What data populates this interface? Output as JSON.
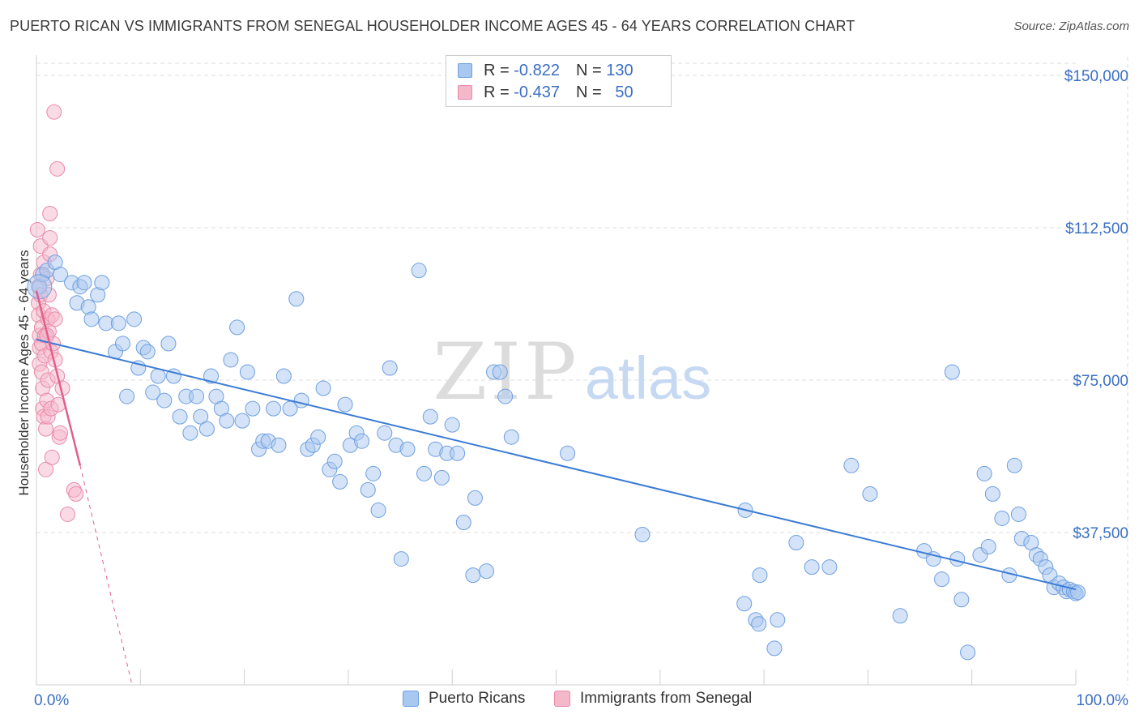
{
  "header": {
    "title": "PUERTO RICAN VS IMMIGRANTS FROM SENEGAL HOUSEHOLDER INCOME AGES 45 - 64 YEARS CORRELATION CHART",
    "source": "Source: ZipAtlas.com"
  },
  "watermark": {
    "zip": "ZIP",
    "atlas": "atlas"
  },
  "legend": {
    "series1": {
      "r_label": "R =",
      "r_value": "-0.822",
      "n_label": "N =",
      "n_value": "130"
    },
    "series2": {
      "r_label": "R =",
      "r_value": "-0.437",
      "n_label": "N =",
      "n_value": "50"
    }
  },
  "bottom_legend": {
    "series1": "Puerto Ricans",
    "series2": "Immigrants from Senegal"
  },
  "colors": {
    "blue_fill": "#a9c8f0",
    "blue_stroke": "#6e9fe0",
    "blue_line": "#3a7bd5",
    "pink_fill": "#f5b8cb",
    "pink_stroke": "#e88aa8",
    "pink_line": "#e0608a",
    "tick_text": "#3a6fc4",
    "grid": "#dddddd"
  },
  "chart_data": {
    "type": "scatter",
    "title": "PUERTO RICAN VS IMMIGRANTS FROM SENEGAL HOUSEHOLDER INCOME AGES 45 - 64 YEARS CORRELATION CHART",
    "xlabel": "",
    "ylabel": "Householder Income Ages 45 - 64 years",
    "xlim": [
      0,
      100
    ],
    "ylim": [
      0,
      153000
    ],
    "x_tick_labels": [
      "0.0%",
      "100.0%"
    ],
    "y_ticks": [
      37500,
      75000,
      112500,
      150000
    ],
    "y_tick_labels": [
      "$37,500",
      "$75,000",
      "$112,500",
      "$150,000"
    ],
    "grid": true,
    "legend_position": "top-center",
    "series": [
      {
        "name": "Puerto Ricans",
        "r": -0.822,
        "n": 130,
        "trend": {
          "x": [
            0,
            100
          ],
          "y": [
            85000,
            23500
          ]
        },
        "points": [
          [
            0.3,
            98000
          ],
          [
            0.6,
            101000
          ],
          [
            1.0,
            102000
          ],
          [
            1.8,
            104000
          ],
          [
            2.3,
            101000
          ],
          [
            3.4,
            99000
          ],
          [
            3.9,
            94000
          ],
          [
            4.2,
            98000
          ],
          [
            4.6,
            99000
          ],
          [
            5.0,
            93000
          ],
          [
            5.3,
            90000
          ],
          [
            5.9,
            96000
          ],
          [
            6.3,
            99000
          ],
          [
            6.7,
            89000
          ],
          [
            7.6,
            82000
          ],
          [
            7.9,
            89000
          ],
          [
            8.3,
            84000
          ],
          [
            8.7,
            71000
          ],
          [
            9.4,
            90000
          ],
          [
            9.8,
            78000
          ],
          [
            10.3,
            83000
          ],
          [
            10.7,
            82000
          ],
          [
            11.2,
            72000
          ],
          [
            11.7,
            76000
          ],
          [
            12.3,
            70000
          ],
          [
            12.7,
            84000
          ],
          [
            13.2,
            76000
          ],
          [
            13.8,
            66000
          ],
          [
            14.4,
            71000
          ],
          [
            14.8,
            62000
          ],
          [
            15.4,
            71000
          ],
          [
            15.8,
            66000
          ],
          [
            16.4,
            63000
          ],
          [
            16.8,
            76000
          ],
          [
            17.3,
            71000
          ],
          [
            17.8,
            68000
          ],
          [
            18.3,
            65000
          ],
          [
            18.7,
            80000
          ],
          [
            19.3,
            88000
          ],
          [
            19.8,
            65000
          ],
          [
            20.3,
            77000
          ],
          [
            20.8,
            68000
          ],
          [
            21.4,
            58000
          ],
          [
            21.8,
            60000
          ],
          [
            22.3,
            60000
          ],
          [
            22.8,
            68000
          ],
          [
            23.3,
            59000
          ],
          [
            23.8,
            76000
          ],
          [
            24.4,
            68000
          ],
          [
            25.0,
            95000
          ],
          [
            25.5,
            70000
          ],
          [
            26.1,
            58000
          ],
          [
            26.6,
            59000
          ],
          [
            27.1,
            61000
          ],
          [
            27.6,
            73000
          ],
          [
            28.2,
            53000
          ],
          [
            28.7,
            55000
          ],
          [
            29.2,
            50000
          ],
          [
            29.7,
            69000
          ],
          [
            30.2,
            59000
          ],
          [
            30.8,
            62000
          ],
          [
            31.3,
            60000
          ],
          [
            31.9,
            48000
          ],
          [
            32.4,
            52000
          ],
          [
            32.9,
            43000
          ],
          [
            33.5,
            62000
          ],
          [
            34.0,
            78000
          ],
          [
            34.6,
            59000
          ],
          [
            35.1,
            31000
          ],
          [
            35.7,
            58000
          ],
          [
            36.8,
            102000
          ],
          [
            37.3,
            52000
          ],
          [
            37.9,
            66000
          ],
          [
            38.4,
            58000
          ],
          [
            39.0,
            51000
          ],
          [
            39.5,
            57000
          ],
          [
            40.0,
            64000
          ],
          [
            40.5,
            57000
          ],
          [
            41.1,
            40000
          ],
          [
            42.0,
            27000
          ],
          [
            42.2,
            46000
          ],
          [
            43.3,
            28000
          ],
          [
            44.0,
            77000
          ],
          [
            44.6,
            77000
          ],
          [
            45.1,
            71000
          ],
          [
            45.7,
            61000
          ],
          [
            51.1,
            57000
          ],
          [
            58.3,
            37000
          ],
          [
            68.1,
            20000
          ],
          [
            69.2,
            16000
          ],
          [
            69.5,
            15000
          ],
          [
            68.2,
            43000
          ],
          [
            69.6,
            27000
          ],
          [
            71.0,
            9000
          ],
          [
            71.3,
            16000
          ],
          [
            73.1,
            35000
          ],
          [
            74.6,
            29000
          ],
          [
            76.3,
            29000
          ],
          [
            78.4,
            54000
          ],
          [
            80.2,
            47000
          ],
          [
            83.1,
            17000
          ],
          [
            85.4,
            33000
          ],
          [
            86.3,
            31000
          ],
          [
            87.1,
            26000
          ],
          [
            88.1,
            77000
          ],
          [
            88.6,
            31000
          ],
          [
            89.0,
            21000
          ],
          [
            89.6,
            8000
          ],
          [
            90.8,
            32000
          ],
          [
            91.2,
            52000
          ],
          [
            91.6,
            34000
          ],
          [
            92.0,
            47000
          ],
          [
            92.9,
            41000
          ],
          [
            93.6,
            27000
          ],
          [
            94.1,
            54000
          ],
          [
            94.5,
            42000
          ],
          [
            94.8,
            36000
          ],
          [
            95.7,
            35000
          ],
          [
            96.2,
            32000
          ],
          [
            96.6,
            31000
          ],
          [
            97.1,
            29000
          ],
          [
            97.5,
            27000
          ],
          [
            97.9,
            24000
          ],
          [
            98.4,
            25000
          ],
          [
            98.8,
            24000
          ],
          [
            99.1,
            23000
          ],
          [
            99.4,
            23500
          ],
          [
            99.8,
            23000
          ],
          [
            100.0,
            22500
          ],
          [
            100.2,
            22800
          ]
        ]
      },
      {
        "name": "Immigrants from Senegal",
        "r": -0.437,
        "n": 50,
        "trend": {
          "x": [
            0,
            4.2
          ],
          "y": [
            97000,
            54000
          ]
        },
        "trend_dashed_extension": {
          "x": [
            4.2,
            9.2
          ],
          "y": [
            54000,
            0
          ]
        },
        "points": [
          [
            0.1,
            112000
          ],
          [
            0.2,
            98000
          ],
          [
            0.2,
            94000
          ],
          [
            0.2,
            91000
          ],
          [
            0.3,
            86000
          ],
          [
            0.3,
            83000
          ],
          [
            0.3,
            79000
          ],
          [
            0.4,
            108000
          ],
          [
            0.4,
            101000
          ],
          [
            0.4,
            96000
          ],
          [
            0.5,
            88000
          ],
          [
            0.5,
            84000
          ],
          [
            0.5,
            77000
          ],
          [
            0.6,
            73000
          ],
          [
            0.6,
            68000
          ],
          [
            0.7,
            104000
          ],
          [
            0.7,
            92000
          ],
          [
            0.7,
            66000
          ],
          [
            0.8,
            86000
          ],
          [
            0.8,
            81000
          ],
          [
            0.9,
            63000
          ],
          [
            0.9,
            53000
          ],
          [
            1.0,
            100000
          ],
          [
            1.0,
            70000
          ],
          [
            1.1,
            90000
          ],
          [
            1.1,
            75000
          ],
          [
            1.1,
            66000
          ],
          [
            1.2,
            87000
          ],
          [
            1.2,
            96000
          ],
          [
            1.3,
            116000
          ],
          [
            1.3,
            110000
          ],
          [
            1.3,
            106000
          ],
          [
            1.4,
            82000
          ],
          [
            1.4,
            68000
          ],
          [
            1.5,
            91000
          ],
          [
            1.5,
            56000
          ],
          [
            1.6,
            84000
          ],
          [
            1.7,
            141000
          ],
          [
            1.8,
            90000
          ],
          [
            1.8,
            80000
          ],
          [
            2.0,
            127000
          ],
          [
            2.0,
            76000
          ],
          [
            2.1,
            69000
          ],
          [
            2.2,
            61000
          ],
          [
            2.3,
            62000
          ],
          [
            2.5,
            73000
          ],
          [
            3.0,
            42000
          ],
          [
            3.6,
            48000
          ],
          [
            3.8,
            47000
          ],
          [
            1.0,
            86000
          ]
        ]
      }
    ]
  }
}
